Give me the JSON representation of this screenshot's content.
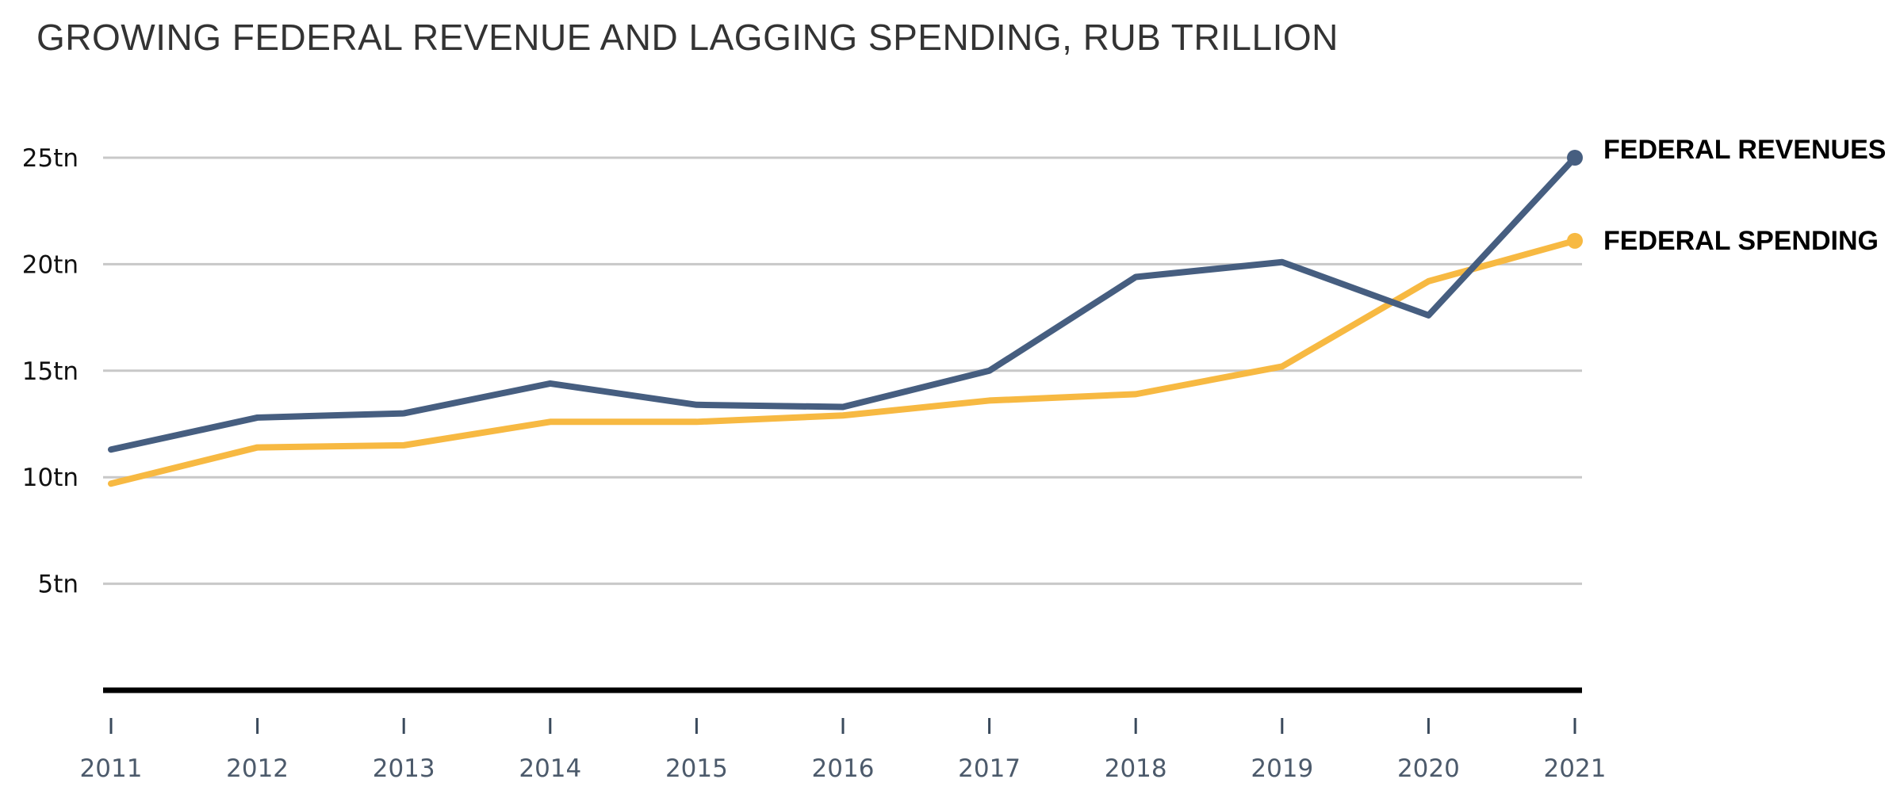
{
  "title": "GROWING FEDERAL REVENUE AND LAGGING SPENDING, RUB TRILLION",
  "chart_data": {
    "type": "line",
    "title": "GROWING FEDERAL REVENUE AND LAGGING SPENDING, RUB TRILLION",
    "xlabel": "",
    "ylabel": "",
    "x": [
      "2011",
      "2012",
      "2013",
      "2014",
      "2015",
      "2016",
      "2017",
      "2018",
      "2019",
      "2020",
      "2021"
    ],
    "yticks": [
      5,
      10,
      15,
      20,
      25
    ],
    "ytick_labels": [
      "5tn",
      "10tn",
      "15tn",
      "20tn",
      "25tn"
    ],
    "ylim": [
      0,
      25
    ],
    "grid": "horizontal",
    "legend": "direct labels at line ends (right)",
    "series": [
      {
        "name": "FEDERAL REVENUES",
        "color": "#465e80",
        "values": [
          11.3,
          12.8,
          13.0,
          14.4,
          13.4,
          13.3,
          15.0,
          19.4,
          20.1,
          17.6,
          25.0
        ]
      },
      {
        "name": "FEDERAL SPENDING",
        "color": "#f7b942",
        "values": [
          9.7,
          11.4,
          11.5,
          12.6,
          12.6,
          12.9,
          13.6,
          13.9,
          15.2,
          19.2,
          21.1
        ]
      }
    ],
    "colors": {
      "gridline": "#c8c8c8",
      "baseline": "#000000"
    }
  }
}
